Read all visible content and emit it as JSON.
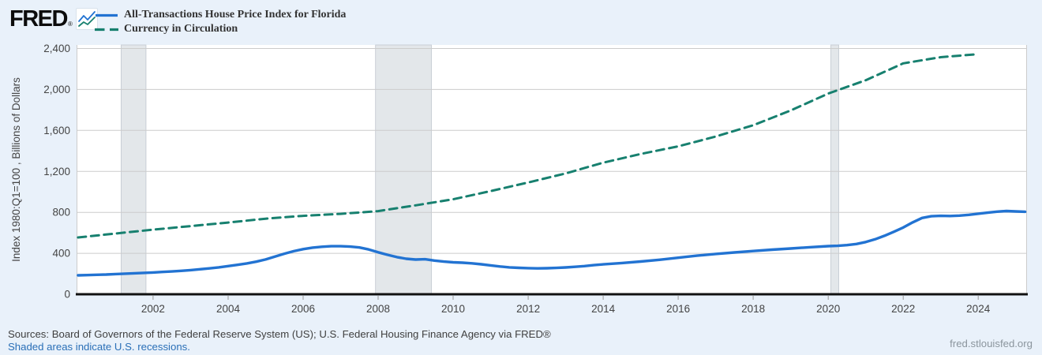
{
  "header": {
    "logo_text": "FRED",
    "registered_mark": "®"
  },
  "footer": {
    "sources": "Sources: Board of Governors of the Federal Reserve System (US); U.S. Federal Housing Finance Agency via FRED®",
    "recession_note": "Shaded areas indicate U.S. recessions.",
    "site": "fred.stlouisfed.org"
  },
  "colors": {
    "page_bg": "#e9f1fa",
    "plot_bg": "#ffffff",
    "grid": "#cccccc",
    "axis": "#111111",
    "tick_mark": "#999999",
    "tick_text": "#444444",
    "recession_fill": "#e3e7ea",
    "recession_edge": "#c9cfd6",
    "series_blue": "#2273d2",
    "series_teal": "#17806f",
    "link": "#2a6fb7"
  },
  "chart_data": {
    "type": "line",
    "ylabel": "Index 1980:Q1=100 , Billions of Dollars",
    "xlabel": "",
    "xlim": [
      1999.96,
      2025.3
    ],
    "ylim": [
      0,
      2400
    ],
    "yticks": [
      0,
      400,
      800,
      1200,
      1600,
      2000,
      2400
    ],
    "ytick_labels": [
      "0",
      "400",
      "800",
      "1,200",
      "1,600",
      "2,000",
      "2,400"
    ],
    "xticks": [
      2002,
      2004,
      2006,
      2008,
      2010,
      2012,
      2014,
      2016,
      2018,
      2020,
      2022,
      2024
    ],
    "grid": "horizontal",
    "legend_position": "top-left",
    "recessions": [
      [
        2001.15,
        2001.81
      ],
      [
        2007.93,
        2009.42
      ],
      [
        2020.07,
        2020.28
      ]
    ],
    "series": [
      {
        "id": "florida-hpi",
        "name": "All-Transactions House Price Index for Florida",
        "color": "#2273d2",
        "width": 3.4,
        "dash": null,
        "points": [
          [
            2000,
            185
          ],
          [
            2000.25,
            187
          ],
          [
            2000.5,
            190
          ],
          [
            2000.75,
            193
          ],
          [
            2001,
            197
          ],
          [
            2001.25,
            201
          ],
          [
            2001.5,
            205
          ],
          [
            2001.75,
            209
          ],
          [
            2002,
            213
          ],
          [
            2002.25,
            218
          ],
          [
            2002.5,
            223
          ],
          [
            2002.75,
            229
          ],
          [
            2003,
            236
          ],
          [
            2003.25,
            244
          ],
          [
            2003.5,
            253
          ],
          [
            2003.75,
            263
          ],
          [
            2004,
            275
          ],
          [
            2004.25,
            287
          ],
          [
            2004.5,
            301
          ],
          [
            2004.75,
            318
          ],
          [
            2005,
            340
          ],
          [
            2005.25,
            368
          ],
          [
            2005.5,
            396
          ],
          [
            2005.75,
            421
          ],
          [
            2006,
            441
          ],
          [
            2006.25,
            455
          ],
          [
            2006.5,
            464
          ],
          [
            2006.75,
            469
          ],
          [
            2007,
            469
          ],
          [
            2007.25,
            465
          ],
          [
            2007.5,
            457
          ],
          [
            2007.75,
            438
          ],
          [
            2008,
            410
          ],
          [
            2008.25,
            385
          ],
          [
            2008.5,
            363
          ],
          [
            2008.75,
            347
          ],
          [
            2009,
            339
          ],
          [
            2009.25,
            342
          ],
          [
            2009.5,
            329
          ],
          [
            2009.75,
            319
          ],
          [
            2010,
            312
          ],
          [
            2010.25,
            308
          ],
          [
            2010.5,
            302
          ],
          [
            2010.75,
            293
          ],
          [
            2011,
            282
          ],
          [
            2011.25,
            271
          ],
          [
            2011.5,
            263
          ],
          [
            2011.75,
            258
          ],
          [
            2012,
            255
          ],
          [
            2012.25,
            253
          ],
          [
            2012.5,
            254
          ],
          [
            2012.75,
            257
          ],
          [
            2013,
            262
          ],
          [
            2013.25,
            268
          ],
          [
            2013.5,
            275
          ],
          [
            2013.75,
            284
          ],
          [
            2014,
            292
          ],
          [
            2014.5,
            305
          ],
          [
            2015,
            320
          ],
          [
            2015.5,
            337
          ],
          [
            2016,
            357
          ],
          [
            2016.5,
            377
          ],
          [
            2017,
            394
          ],
          [
            2017.5,
            408
          ],
          [
            2018,
            422
          ],
          [
            2018.5,
            435
          ],
          [
            2019,
            447
          ],
          [
            2019.5,
            459
          ],
          [
            2020,
            470
          ],
          [
            2020.25,
            473
          ],
          [
            2020.5,
            480
          ],
          [
            2020.75,
            491
          ],
          [
            2021,
            510
          ],
          [
            2021.25,
            537
          ],
          [
            2021.5,
            571
          ],
          [
            2021.75,
            610
          ],
          [
            2022,
            652
          ],
          [
            2022.25,
            702
          ],
          [
            2022.5,
            745
          ],
          [
            2022.75,
            762
          ],
          [
            2023,
            766
          ],
          [
            2023.25,
            764
          ],
          [
            2023.5,
            768
          ],
          [
            2023.75,
            776
          ],
          [
            2024,
            787
          ],
          [
            2024.25,
            797
          ],
          [
            2024.5,
            807
          ],
          [
            2024.75,
            813
          ],
          [
            2025,
            809
          ],
          [
            2025.25,
            806
          ]
        ]
      },
      {
        "id": "currency-in-circulation",
        "name": "Currency in Circulation",
        "color": "#17806f",
        "width": 3,
        "dash": [
          10,
          6.5
        ],
        "points": [
          [
            2000,
            555
          ],
          [
            2001,
            593
          ],
          [
            2002,
            631
          ],
          [
            2003,
            666
          ],
          [
            2004,
            700
          ],
          [
            2005,
            738
          ],
          [
            2006,
            766
          ],
          [
            2007,
            785
          ],
          [
            2008,
            812
          ],
          [
            2009,
            868
          ],
          [
            2010,
            928
          ],
          [
            2011,
            1008
          ],
          [
            2012,
            1092
          ],
          [
            2013,
            1180
          ],
          [
            2014,
            1285
          ],
          [
            2015,
            1370
          ],
          [
            2016,
            1445
          ],
          [
            2017,
            1540
          ],
          [
            2018,
            1650
          ],
          [
            2019,
            1795
          ],
          [
            2020,
            1960
          ],
          [
            2021,
            2090
          ],
          [
            2022,
            2255
          ],
          [
            2023,
            2315
          ],
          [
            2024,
            2345
          ]
        ]
      }
    ]
  }
}
